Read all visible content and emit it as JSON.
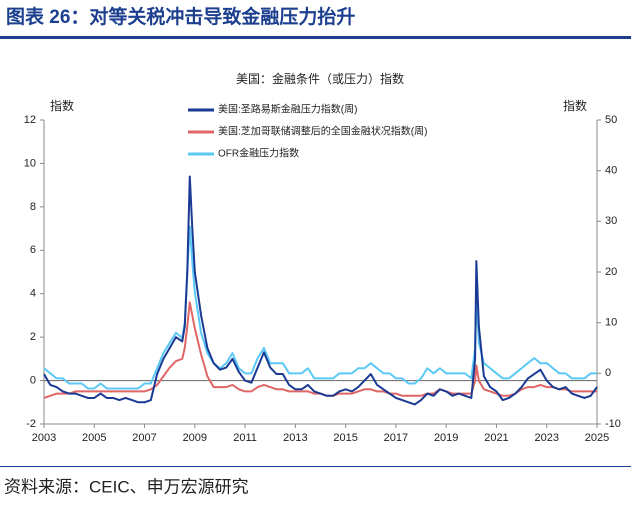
{
  "header": {
    "title": "图表 26：对等关税冲击导致金融压力抬升"
  },
  "chart_data": {
    "type": "line",
    "subtitle": "美国：金融条件（或压力）指数",
    "ylabel": "指数",
    "y2label": "指数",
    "x": [
      2003,
      2003.25,
      2003.5,
      2003.75,
      2004,
      2004.25,
      2004.5,
      2004.75,
      2005,
      2005.25,
      2005.5,
      2005.75,
      2006,
      2006.25,
      2006.5,
      2006.75,
      2007,
      2007.25,
      2007.5,
      2007.75,
      2008,
      2008.25,
      2008.5,
      2008.6,
      2008.7,
      2008.8,
      2008.9,
      2009,
      2009.25,
      2009.5,
      2009.75,
      2010,
      2010.25,
      2010.5,
      2010.75,
      2011,
      2011.25,
      2011.5,
      2011.75,
      2012,
      2012.25,
      2012.5,
      2012.75,
      2013,
      2013.25,
      2013.5,
      2013.75,
      2014,
      2014.25,
      2014.5,
      2014.75,
      2015,
      2015.25,
      2015.5,
      2015.75,
      2016,
      2016.25,
      2016.5,
      2016.75,
      2017,
      2017.25,
      2017.5,
      2017.75,
      2018,
      2018.25,
      2018.5,
      2018.75,
      2019,
      2019.25,
      2019.5,
      2019.75,
      2020,
      2020.15,
      2020.2,
      2020.3,
      2020.5,
      2020.75,
      2021,
      2021.25,
      2021.5,
      2021.75,
      2022,
      2022.25,
      2022.5,
      2022.75,
      2023,
      2023.25,
      2023.5,
      2023.75,
      2024,
      2024.25,
      2024.5,
      2024.75,
      2025
    ],
    "xlim": [
      2003,
      2025
    ],
    "xticks": [
      2003,
      2005,
      2007,
      2009,
      2011,
      2013,
      2015,
      2017,
      2019,
      2021,
      2023,
      2025
    ],
    "ylim": [
      -2,
      12
    ],
    "yticks": [
      -2,
      0,
      2,
      4,
      6,
      8,
      10,
      12
    ],
    "y2lim": [
      -10,
      50
    ],
    "y2ticks": [
      -10,
      0,
      10,
      20,
      30,
      40,
      50
    ],
    "legend": "top-left",
    "series": [
      {
        "name": "美国:圣路易斯金融压力指数(周)",
        "color": "#1a3a94",
        "values": [
          0.3,
          -0.2,
          -0.3,
          -0.5,
          -0.6,
          -0.6,
          -0.7,
          -0.8,
          -0.8,
          -0.6,
          -0.8,
          -0.8,
          -0.9,
          -0.8,
          -0.9,
          -1.0,
          -1.0,
          -0.9,
          0.3,
          1.0,
          1.5,
          2.0,
          1.8,
          2.5,
          5.0,
          9.4,
          7.0,
          5.0,
          3.0,
          1.5,
          0.8,
          0.5,
          0.6,
          1.0,
          0.4,
          0.0,
          -0.1,
          0.6,
          1.3,
          0.6,
          0.3,
          0.3,
          -0.2,
          -0.4,
          -0.4,
          -0.2,
          -0.5,
          -0.6,
          -0.7,
          -0.7,
          -0.5,
          -0.4,
          -0.5,
          -0.3,
          0.0,
          0.3,
          -0.2,
          -0.4,
          -0.6,
          -0.8,
          -0.9,
          -1.0,
          -1.1,
          -0.9,
          -0.6,
          -0.7,
          -0.4,
          -0.5,
          -0.7,
          -0.6,
          -0.7,
          -0.8,
          1.0,
          5.5,
          2.5,
          0.2,
          -0.3,
          -0.5,
          -0.9,
          -0.8,
          -0.6,
          -0.3,
          0.1,
          0.3,
          0.5,
          0.0,
          -0.3,
          -0.4,
          -0.3,
          -0.6,
          -0.7,
          -0.8,
          -0.7,
          -0.3
        ]
      },
      {
        "name": "美国:芝加哥联储调整后的全国金融状况指数(周)",
        "color": "#e06666",
        "values": [
          -0.8,
          -0.7,
          -0.6,
          -0.6,
          -0.6,
          -0.5,
          -0.5,
          -0.5,
          -0.5,
          -0.5,
          -0.5,
          -0.5,
          -0.5,
          -0.5,
          -0.5,
          -0.5,
          -0.5,
          -0.4,
          -0.2,
          0.2,
          0.6,
          0.9,
          1.0,
          1.5,
          2.5,
          3.6,
          3.0,
          2.4,
          1.2,
          0.2,
          -0.3,
          -0.3,
          -0.3,
          -0.2,
          -0.4,
          -0.5,
          -0.5,
          -0.3,
          -0.2,
          -0.3,
          -0.4,
          -0.4,
          -0.5,
          -0.5,
          -0.5,
          -0.5,
          -0.6,
          -0.6,
          -0.7,
          -0.7,
          -0.6,
          -0.6,
          -0.6,
          -0.5,
          -0.4,
          -0.4,
          -0.5,
          -0.5,
          -0.6,
          -0.6,
          -0.7,
          -0.7,
          -0.7,
          -0.7,
          -0.6,
          -0.6,
          -0.4,
          -0.5,
          -0.6,
          -0.6,
          -0.6,
          -0.6,
          0.0,
          0.7,
          0.0,
          -0.4,
          -0.5,
          -0.6,
          -0.7,
          -0.7,
          -0.6,
          -0.4,
          -0.3,
          -0.3,
          -0.2,
          -0.3,
          -0.3,
          -0.4,
          -0.4,
          -0.5,
          -0.5,
          -0.5,
          -0.5,
          -0.5
        ]
      },
      {
        "name": "OFR金融压力指数",
        "color": "#5bc8f5",
        "axis": "y2",
        "values": [
          1,
          0,
          -1,
          -1,
          -2,
          -2,
          -2,
          -3,
          -3,
          -2,
          -3,
          -3,
          -3,
          -3,
          -3,
          -3,
          -2,
          -2,
          1,
          4,
          6,
          8,
          7,
          10,
          20,
          29,
          22,
          16,
          8,
          4,
          2,
          1,
          2,
          4,
          1,
          0,
          0,
          3,
          5,
          2,
          2,
          2,
          0,
          0,
          0,
          1,
          -1,
          -1,
          -1,
          -1,
          0,
          0,
          0,
          1,
          1,
          2,
          1,
          0,
          0,
          -1,
          -1,
          -2,
          -2,
          -1,
          1,
          0,
          1,
          0,
          0,
          0,
          0,
          -1,
          5,
          15,
          6,
          2,
          1,
          0,
          -1,
          -1,
          0,
          1,
          2,
          3,
          2,
          2,
          1,
          0,
          0,
          -1,
          -1,
          -1,
          0,
          0
        ]
      }
    ]
  },
  "footer": {
    "source": "资料来源：CEIC、申万宏源研究"
  }
}
